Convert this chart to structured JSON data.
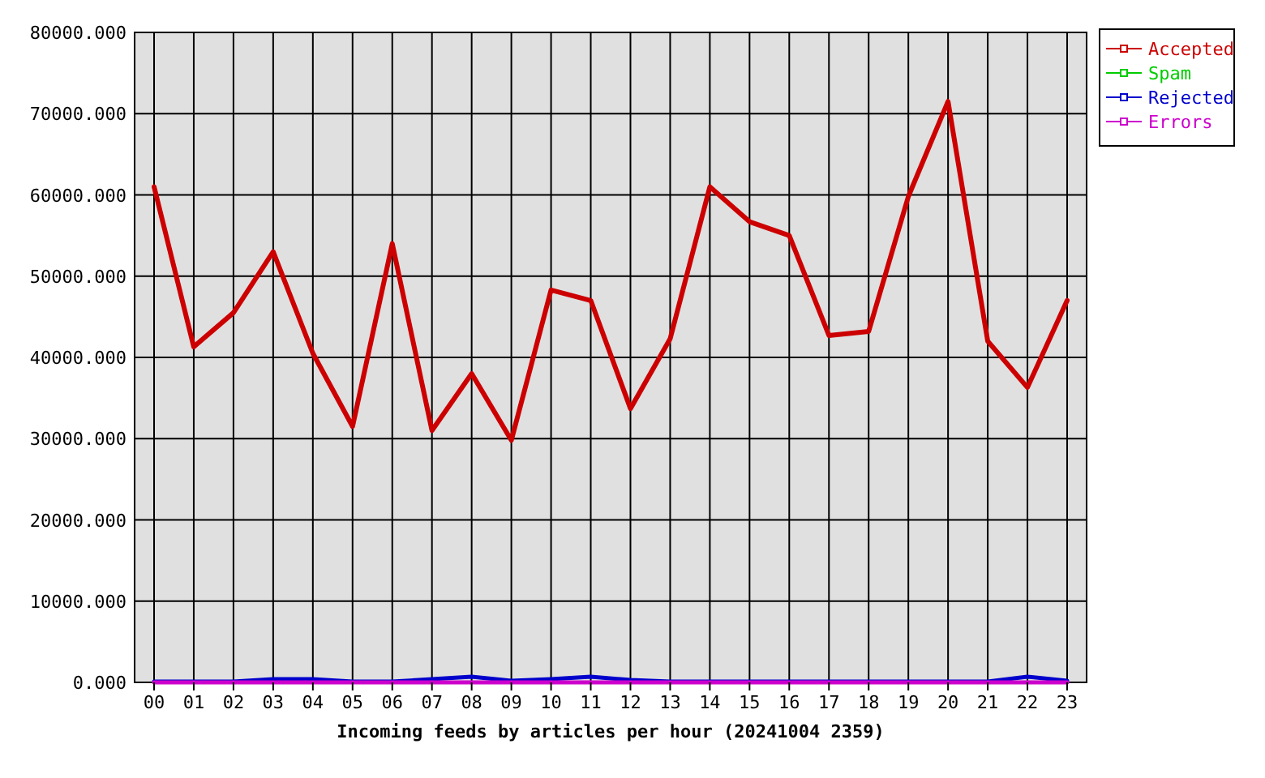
{
  "chart_data": {
    "type": "line",
    "xlabel": "Incoming feeds by articles per hour (20241004 2359)",
    "categories": [
      "00",
      "01",
      "02",
      "03",
      "04",
      "05",
      "06",
      "07",
      "08",
      "09",
      "10",
      "11",
      "12",
      "13",
      "14",
      "15",
      "16",
      "17",
      "18",
      "19",
      "20",
      "21",
      "22",
      "23"
    ],
    "series": [
      {
        "name": "Accepted",
        "color": "#cc0000",
        "values": [
          61000,
          41300,
          45500,
          53000,
          40500,
          31500,
          54000,
          31000,
          38000,
          29800,
          48300,
          47000,
          33700,
          42300,
          61000,
          56700,
          55000,
          42700,
          43200,
          59800,
          71500,
          42000,
          36300,
          47000
        ]
      },
      {
        "name": "Spam",
        "color": "#00cc00",
        "values": [
          null,
          null,
          null,
          null,
          null,
          null,
          null,
          null,
          null,
          null,
          null,
          null,
          null,
          null,
          null,
          null,
          null,
          null,
          null,
          null,
          null,
          null,
          null,
          null
        ]
      },
      {
        "name": "Rejected",
        "color": "#0000cc",
        "values": [
          100,
          100,
          100,
          400,
          400,
          100,
          100,
          400,
          700,
          200,
          400,
          700,
          300,
          100,
          100,
          100,
          100,
          100,
          100,
          100,
          100,
          100,
          700,
          200
        ]
      },
      {
        "name": "Errors",
        "color": "#cc00cc",
        "values": [
          0,
          0,
          0,
          0,
          0,
          0,
          0,
          0,
          0,
          0,
          0,
          0,
          0,
          0,
          0,
          0,
          0,
          0,
          0,
          0,
          0,
          0,
          0,
          0
        ]
      }
    ],
    "ylim": [
      0,
      80000
    ],
    "yticks": [
      {
        "value": 0,
        "label": "0.000"
      },
      {
        "value": 10000,
        "label": "10000.000"
      },
      {
        "value": 20000,
        "label": "20000.000"
      },
      {
        "value": 30000,
        "label": "30000.000"
      },
      {
        "value": 40000,
        "label": "40000.000"
      },
      {
        "value": 50000,
        "label": "50000.000"
      },
      {
        "value": 60000,
        "label": "60000.000"
      },
      {
        "value": 70000,
        "label": "70000.000"
      },
      {
        "value": 80000,
        "label": "80000.000"
      }
    ],
    "grid": true,
    "legend": "top right"
  }
}
